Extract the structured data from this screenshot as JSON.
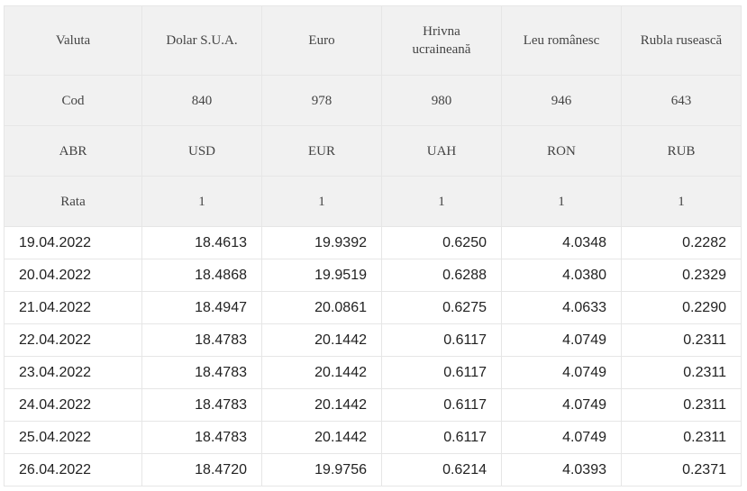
{
  "header": {
    "valuta": [
      "Valuta",
      "Dolar S.U.A.",
      "Euro",
      "Hrivna ucraineană",
      "Leu românesc",
      "Rubla rusească"
    ],
    "cod": [
      "Cod",
      "840",
      "978",
      "980",
      "946",
      "643"
    ],
    "abr": [
      "ABR",
      "USD",
      "EUR",
      "UAH",
      "RON",
      "RUB"
    ],
    "rata": [
      "Rata",
      "1",
      "1",
      "1",
      "1",
      "1"
    ]
  },
  "rows": [
    [
      "19.04.2022",
      "18.4613",
      "19.9392",
      "0.6250",
      "4.0348",
      "0.2282"
    ],
    [
      "20.04.2022",
      "18.4868",
      "19.9519",
      "0.6288",
      "4.0380",
      "0.2329"
    ],
    [
      "21.04.2022",
      "18.4947",
      "20.0861",
      "0.6275",
      "4.0633",
      "0.2290"
    ],
    [
      "22.04.2022",
      "18.4783",
      "20.1442",
      "0.6117",
      "4.0749",
      "0.2311"
    ],
    [
      "23.04.2022",
      "18.4783",
      "20.1442",
      "0.6117",
      "4.0749",
      "0.2311"
    ],
    [
      "24.04.2022",
      "18.4783",
      "20.1442",
      "0.6117",
      "4.0749",
      "0.2311"
    ],
    [
      "25.04.2022",
      "18.4783",
      "20.1442",
      "0.6117",
      "4.0749",
      "0.2311"
    ],
    [
      "26.04.2022",
      "18.4720",
      "19.9756",
      "0.6214",
      "4.0393",
      "0.2371"
    ]
  ]
}
